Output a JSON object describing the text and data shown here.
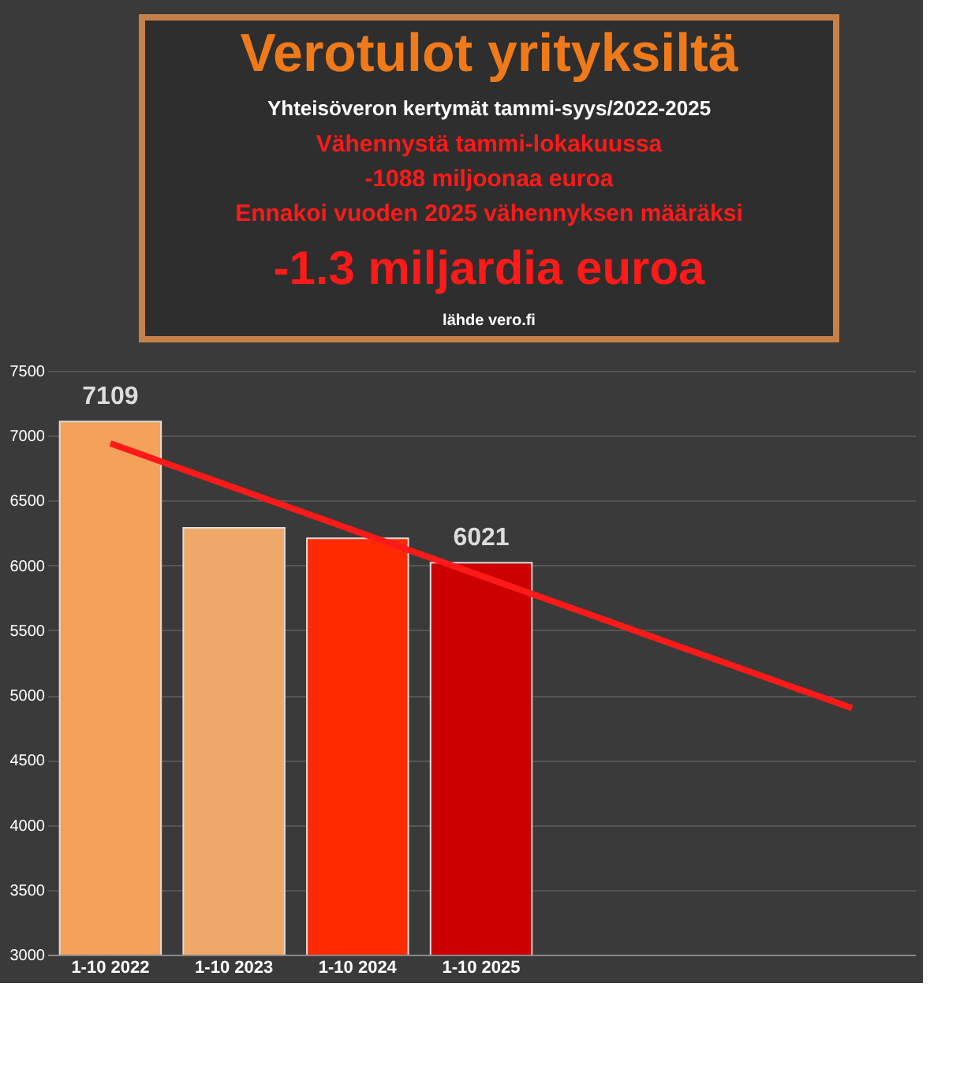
{
  "chart_data": {
    "type": "bar",
    "title": "Verotulot yrityksiltä",
    "subtitle": "Yhteisöveron kertymät tammi-syys/2022-2025",
    "annotations": [
      "Vähennystä tammi-lokakuussa",
      "-1088 miljoonaa euroa",
      "Ennakoi vuoden 2025 vähennyksen määräksi",
      "-1.3 miljardia euroa",
      "lähde vero.fi"
    ],
    "categories": [
      "1-10 2022",
      "1-10 2023",
      "1-10 2024",
      "1-10 2025",
      null,
      null,
      null
    ],
    "series": [
      {
        "colors": [
          "#f4a25a",
          "#f0a868",
          "#ff2a00",
          "#cc0000",
          null,
          null,
          null
        ],
        "values": [
          7109,
          6290,
          6210,
          6021,
          null,
          null,
          null
        ],
        "value_labels": [
          "7109",
          null,
          null,
          "6021",
          null,
          null,
          null
        ]
      },
      {
        "type": "line",
        "color": "#ff1a1a",
        "values": [
          6940,
          null,
          null,
          null,
          null,
          null,
          4900
        ]
      }
    ],
    "ylim": [
      3000,
      7500
    ],
    "yticks": [
      3000,
      3500,
      4000,
      4500,
      5000,
      5500,
      6000,
      6500,
      7000,
      7500
    ],
    "grid": "y"
  }
}
